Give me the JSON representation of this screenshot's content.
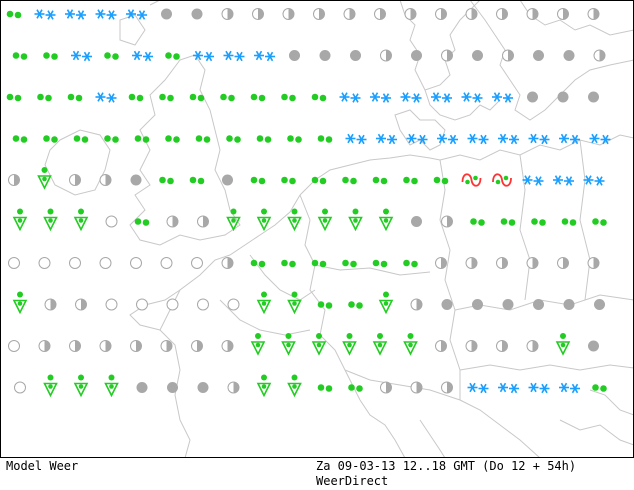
{
  "footer": {
    "model_label": "Model Weer",
    "time_label": "Za 09-03-13 12..18 GMT (Do 12 + 54h)",
    "source_label": "WeerDirect"
  },
  "colors": {
    "coastline": "#c8c8c8",
    "border": "#000000",
    "rain": "#22cc22",
    "snow": "#1a9fff",
    "cloud": "#a8a8a8",
    "sleet_wave": "#ff3333"
  },
  "symbol_legend": {
    "snow": "snow-icon",
    "rain_dots": "rain-icon",
    "shower": "shower-icon",
    "cloudy": "overcast-icon",
    "half": "partly-cloudy-icon",
    "clear": "clear-icon",
    "sleet": "sleet-icon"
  },
  "grid": [
    [
      "r",
      "s",
      "s",
      "s",
      "s",
      "c",
      "c",
      "h",
      "h",
      "h",
      "h",
      "h",
      "h",
      "h",
      "h",
      "h",
      "h",
      "h",
      "h",
      "h"
    ],
    [
      "r",
      "r",
      "s",
      "r",
      "s",
      "r",
      "s",
      "s",
      "s",
      "c",
      "c",
      "c",
      "h",
      "c",
      "h",
      "c",
      "h",
      "c",
      "c",
      "h"
    ],
    [
      "r",
      "r",
      "r",
      "s",
      "r",
      "r",
      "r",
      "r",
      "r",
      "r",
      "r",
      "s",
      "s",
      "s",
      "s",
      "s",
      "s",
      "c",
      "c",
      "c"
    ],
    [
      "r",
      "r",
      "r",
      "r",
      "r",
      "r",
      "r",
      "r",
      "r",
      "r",
      "r",
      "s",
      "s",
      "s",
      "s",
      "s",
      "s",
      "s",
      "s",
      "s"
    ],
    [
      "h",
      "v",
      "h",
      "h",
      "c",
      "r",
      "r",
      "c",
      "r",
      "r",
      "r",
      "r",
      "r",
      "r",
      "r",
      "x",
      "x",
      "s",
      "s",
      "s"
    ],
    [
      "v",
      "v",
      "v",
      "o",
      "r",
      "h",
      "h",
      "v",
      "v",
      "v",
      "v",
      "v",
      "v",
      "c",
      "h",
      "r",
      "r",
      "r",
      "r",
      "r"
    ],
    [
      "o",
      "o",
      "o",
      "o",
      "o",
      "o",
      "o",
      "h",
      "r",
      "r",
      "r",
      "r",
      "r",
      "r",
      "h",
      "h",
      "h",
      "h",
      "h",
      "h"
    ],
    [
      "v",
      "h",
      "h",
      "o",
      "o",
      "o",
      "o",
      "o",
      "v",
      "v",
      "r",
      "r",
      "v",
      "h",
      "c",
      "c",
      "c",
      "c",
      "c",
      "c"
    ],
    [
      "o",
      "h",
      "h",
      "h",
      "h",
      "h",
      "h",
      "h",
      "v",
      "v",
      "v",
      "v",
      "v",
      "v",
      "h",
      "h",
      "h",
      "h",
      "v",
      "c"
    ],
    [
      "o",
      "v",
      "v",
      "v",
      "c",
      "c",
      "c",
      "h",
      "v",
      "v",
      "r",
      "r",
      "h",
      "h",
      "h",
      "s",
      "s",
      "s",
      "s",
      "r"
    ]
  ]
}
